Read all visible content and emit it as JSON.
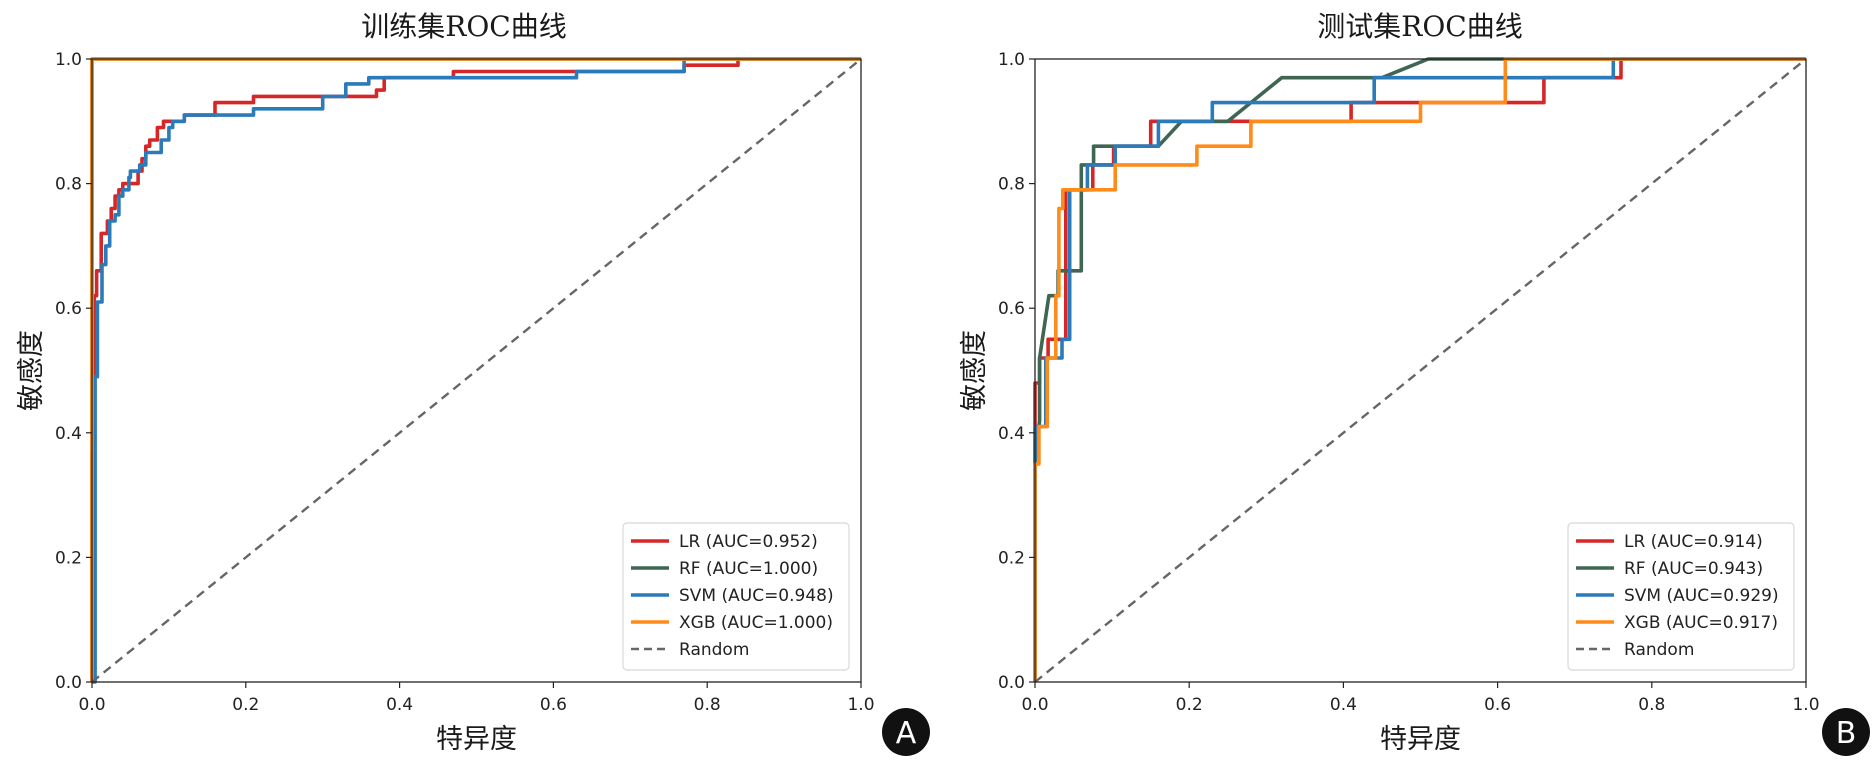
{
  "chart_data": [
    {
      "type": "line",
      "panel_label": "A",
      "title": "训练集ROC曲线",
      "xlabel": "特异度",
      "ylabel": "敏感度",
      "xlim": [
        0,
        1
      ],
      "ylim": [
        0,
        1
      ],
      "xticks": [
        "0.0",
        "0.2",
        "0.4",
        "0.6",
        "0.8",
        "1.0"
      ],
      "yticks": [
        "0.0",
        "0.2",
        "0.4",
        "0.6",
        "0.8",
        "1.0"
      ],
      "grid": false,
      "legend_position": "bottom-right",
      "series": [
        {
          "name": "LR",
          "label": "LR (AUC=0.952)",
          "auc": 0.952,
          "color": "#d62728",
          "x": [
            0,
            0,
            0.003,
            0.003,
            0.006,
            0.006,
            0.012,
            0.012,
            0.02,
            0.02,
            0.025,
            0.025,
            0.03,
            0.03,
            0.035,
            0.035,
            0.04,
            0.04,
            0.06,
            0.06,
            0.065,
            0.065,
            0.07,
            0.07,
            0.075,
            0.075,
            0.085,
            0.085,
            0.093,
            0.093,
            0.12,
            0.12,
            0.16,
            0.16,
            0.21,
            0.21,
            0.37,
            0.37,
            0.38,
            0.38,
            0.47,
            0.47,
            0.77,
            0.77,
            0.84,
            0.84,
            1.0
          ],
          "y": [
            0,
            0.37,
            0.37,
            0.62,
            0.62,
            0.66,
            0.66,
            0.72,
            0.72,
            0.74,
            0.74,
            0.76,
            0.76,
            0.78,
            0.78,
            0.79,
            0.79,
            0.8,
            0.8,
            0.82,
            0.82,
            0.84,
            0.84,
            0.86,
            0.86,
            0.87,
            0.87,
            0.89,
            0.89,
            0.9,
            0.9,
            0.91,
            0.91,
            0.93,
            0.93,
            0.94,
            0.94,
            0.95,
            0.95,
            0.97,
            0.97,
            0.98,
            0.98,
            0.99,
            0.99,
            1.0,
            1.0
          ]
        },
        {
          "name": "RF",
          "label": "RF (AUC=1.000)",
          "auc": 1.0,
          "color": "#3f6652",
          "x": [
            0,
            0,
            1.0
          ],
          "y": [
            0,
            1.0,
            1.0
          ]
        },
        {
          "name": "SVM",
          "label": "SVM (AUC=0.948)",
          "auc": 0.948,
          "color": "#2b7bba",
          "x": [
            0,
            0.004,
            0.004,
            0.007,
            0.007,
            0.013,
            0.013,
            0.018,
            0.018,
            0.023,
            0.023,
            0.03,
            0.03,
            0.035,
            0.035,
            0.04,
            0.04,
            0.048,
            0.048,
            0.05,
            0.05,
            0.062,
            0.062,
            0.07,
            0.07,
            0.09,
            0.09,
            0.1,
            0.1,
            0.105,
            0.105,
            0.12,
            0.12,
            0.21,
            0.21,
            0.3,
            0.3,
            0.33,
            0.33,
            0.36,
            0.36,
            0.63,
            0.63,
            0.77,
            0.77,
            1.0
          ],
          "y": [
            0,
            0,
            0.49,
            0.49,
            0.61,
            0.61,
            0.67,
            0.67,
            0.7,
            0.7,
            0.74,
            0.74,
            0.75,
            0.75,
            0.78,
            0.78,
            0.79,
            0.79,
            0.81,
            0.81,
            0.82,
            0.82,
            0.83,
            0.83,
            0.85,
            0.85,
            0.87,
            0.87,
            0.89,
            0.89,
            0.9,
            0.9,
            0.91,
            0.91,
            0.92,
            0.92,
            0.94,
            0.94,
            0.96,
            0.96,
            0.97,
            0.97,
            0.98,
            0.98,
            1.0,
            1.0
          ]
        },
        {
          "name": "XGB",
          "label": "XGB (AUC=1.000)",
          "auc": 1.0,
          "color": "#ff8c1a",
          "x": [
            0,
            0,
            1.0
          ],
          "y": [
            0,
            1.0,
            1.0
          ]
        },
        {
          "name": "Random",
          "label": "Random",
          "color": "#666666",
          "dashed": true,
          "x": [
            0,
            1
          ],
          "y": [
            0,
            1
          ]
        }
      ]
    },
    {
      "type": "line",
      "panel_label": "B",
      "title": "测试集ROC曲线",
      "xlabel": "特异度",
      "ylabel": "敏感度",
      "xlim": [
        0,
        1
      ],
      "ylim": [
        0,
        1
      ],
      "xticks": [
        "0.0",
        "0.2",
        "0.4",
        "0.6",
        "0.8",
        "1.0"
      ],
      "yticks": [
        "0.0",
        "0.2",
        "0.4",
        "0.6",
        "0.8",
        "1.0"
      ],
      "grid": false,
      "legend_position": "bottom-right",
      "series": [
        {
          "name": "LR",
          "label": "LR (AUC=0.914)",
          "auc": 0.914,
          "color": "#d62728",
          "x": [
            0,
            0,
            0.006,
            0.006,
            0.017,
            0.017,
            0.04,
            0.04,
            0.075,
            0.075,
            0.102,
            0.102,
            0.15,
            0.15,
            0.24,
            0.24,
            0.41,
            0.41,
            0.52,
            0.52,
            0.66,
            0.66,
            0.76,
            0.76,
            1.0
          ],
          "y": [
            0,
            0.48,
            0.48,
            0.52,
            0.52,
            0.55,
            0.55,
            0.79,
            0.79,
            0.83,
            0.83,
            0.86,
            0.86,
            0.9,
            0.9,
            0.9,
            0.9,
            0.93,
            0.93,
            0.93,
            0.93,
            0.97,
            0.97,
            1.0,
            1.0
          ]
        },
        {
          "name": "RF",
          "label": "RF (AUC=0.943)",
          "auc": 0.943,
          "color": "#3f6652",
          "x": [
            0,
            0,
            0.006,
            0.006,
            0.018,
            0.03,
            0.03,
            0.06,
            0.06,
            0.076,
            0.076,
            0.16,
            0.19,
            0.25,
            0.28,
            0.32,
            0.45,
            0.51,
            1.0
          ],
          "y": [
            0,
            0.35,
            0.42,
            0.52,
            0.62,
            0.62,
            0.66,
            0.66,
            0.83,
            0.83,
            0.86,
            0.86,
            0.9,
            0.9,
            0.93,
            0.97,
            0.97,
            1.0,
            1.0
          ]
        },
        {
          "name": "SVM",
          "label": "SVM (AUC=0.929)",
          "auc": 0.929,
          "color": "#2b7bba",
          "x": [
            0,
            0,
            0.014,
            0.014,
            0.035,
            0.035,
            0.045,
            0.045,
            0.068,
            0.068,
            0.104,
            0.104,
            0.16,
            0.16,
            0.23,
            0.23,
            0.44,
            0.44,
            0.75,
            0.75,
            1.0
          ],
          "y": [
            0,
            0.41,
            0.41,
            0.52,
            0.52,
            0.55,
            0.55,
            0.79,
            0.79,
            0.83,
            0.83,
            0.86,
            0.86,
            0.9,
            0.9,
            0.93,
            0.93,
            0.97,
            0.97,
            1.0,
            1.0
          ]
        },
        {
          "name": "XGB",
          "label": "XGB (AUC=0.917)",
          "auc": 0.917,
          "color": "#ff8c1a",
          "x": [
            0,
            0,
            0.005,
            0.005,
            0.016,
            0.016,
            0.027,
            0.027,
            0.031,
            0.031,
            0.036,
            0.036,
            0.104,
            0.104,
            0.21,
            0.21,
            0.28,
            0.28,
            0.5,
            0.5,
            0.61,
            0.61,
            1.0
          ],
          "y": [
            0,
            0.35,
            0.35,
            0.41,
            0.41,
            0.52,
            0.52,
            0.62,
            0.62,
            0.76,
            0.76,
            0.79,
            0.79,
            0.83,
            0.83,
            0.86,
            0.86,
            0.9,
            0.9,
            0.93,
            0.93,
            1.0,
            1.0
          ]
        },
        {
          "name": "Random",
          "label": "Random",
          "color": "#666666",
          "dashed": true,
          "x": [
            0,
            1
          ],
          "y": [
            0,
            1
          ]
        }
      ]
    }
  ]
}
